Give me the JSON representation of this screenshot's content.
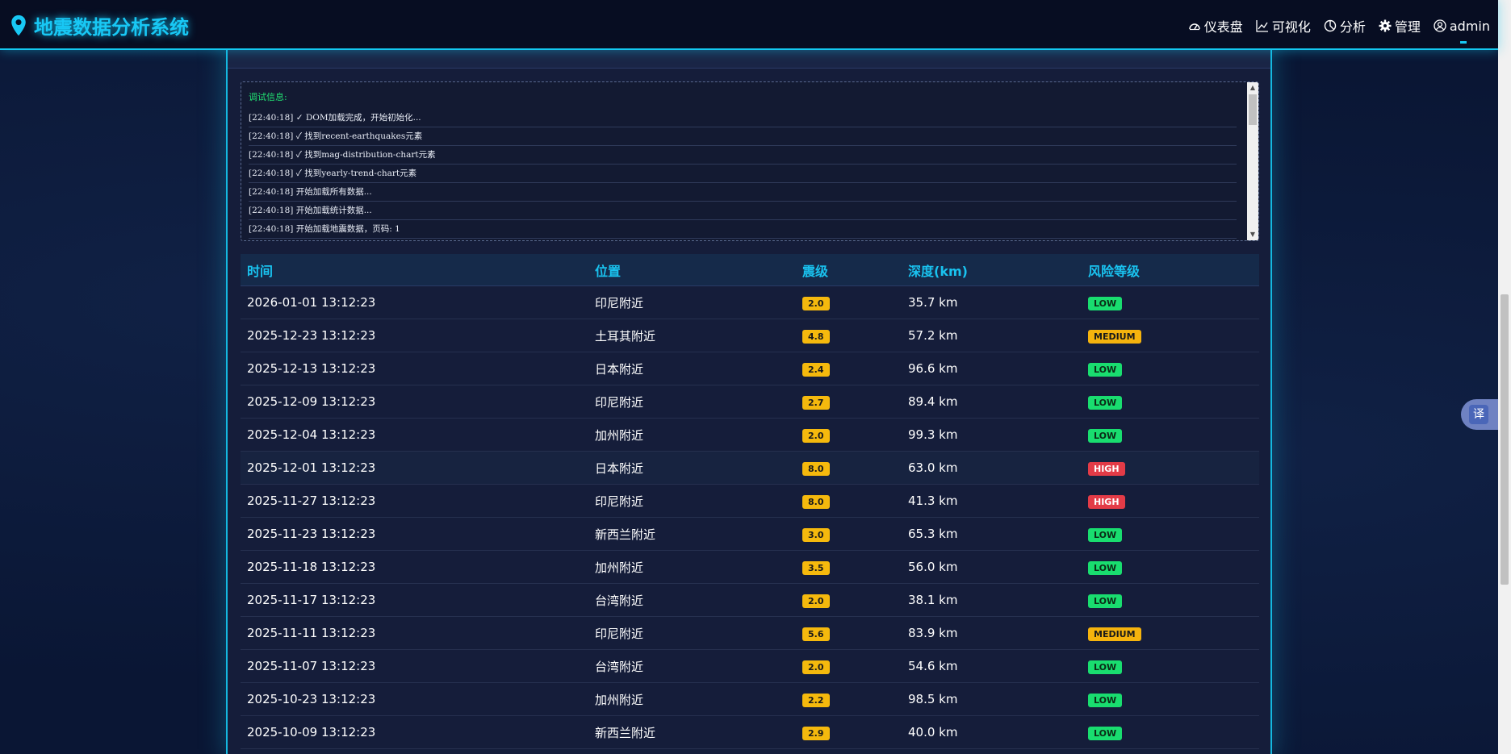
{
  "app": {
    "title": "地震数据分析系统"
  },
  "nav": {
    "items": [
      {
        "label": "仪表盘",
        "icon": "gauge-icon"
      },
      {
        "label": "可视化",
        "icon": "line-chart-icon"
      },
      {
        "label": "分析",
        "icon": "pie-chart-icon"
      },
      {
        "label": "管理",
        "icon": "gear-icon"
      },
      {
        "label": "admin",
        "icon": "user-circle-icon"
      }
    ]
  },
  "debug": {
    "title": "调试信息:",
    "lines": [
      "[22:40:18] ✓ DOM加载完成，开始初始化...",
      "[22:40:18] ✓ 找到recent-earthquakes元素",
      "[22:40:18] ✓ 找到mag-distribution-chart元素",
      "[22:40:18] ✓ 找到yearly-trend-chart元素",
      "[22:40:18] 开始加载所有数据...",
      "[22:40:18] 开始加载统计数据...",
      "[22:40:18] 开始加载地震数据，页码: 1"
    ]
  },
  "table": {
    "headers": {
      "time": "时间",
      "location": "位置",
      "magnitude": "震级",
      "depth": "深度(km)",
      "risk": "风险等级"
    },
    "rows": [
      {
        "time": "2026-01-01 13:12:23",
        "location": "印尼附近",
        "magnitude": "2.0",
        "depth": "35.7 km",
        "risk": "LOW"
      },
      {
        "time": "2025-12-23 13:12:23",
        "location": "土耳其附近",
        "magnitude": "4.8",
        "depth": "57.2 km",
        "risk": "MEDIUM"
      },
      {
        "time": "2025-12-13 13:12:23",
        "location": "日本附近",
        "magnitude": "2.4",
        "depth": "96.6 km",
        "risk": "LOW"
      },
      {
        "time": "2025-12-09 13:12:23",
        "location": "印尼附近",
        "magnitude": "2.7",
        "depth": "89.4 km",
        "risk": "LOW"
      },
      {
        "time": "2025-12-04 13:12:23",
        "location": "加州附近",
        "magnitude": "2.0",
        "depth": "99.3 km",
        "risk": "LOW"
      },
      {
        "time": "2025-12-01 13:12:23",
        "location": "日本附近",
        "magnitude": "8.0",
        "depth": "63.0 km",
        "risk": "HIGH"
      },
      {
        "time": "2025-11-27 13:12:23",
        "location": "印尼附近",
        "magnitude": "8.0",
        "depth": "41.3 km",
        "risk": "HIGH"
      },
      {
        "time": "2025-11-23 13:12:23",
        "location": "新西兰附近",
        "magnitude": "3.0",
        "depth": "65.3 km",
        "risk": "LOW"
      },
      {
        "time": "2025-11-18 13:12:23",
        "location": "加州附近",
        "magnitude": "3.5",
        "depth": "56.0 km",
        "risk": "LOW"
      },
      {
        "time": "2025-11-17 13:12:23",
        "location": "台湾附近",
        "magnitude": "2.0",
        "depth": "38.1 km",
        "risk": "LOW"
      },
      {
        "time": "2025-11-11 13:12:23",
        "location": "印尼附近",
        "magnitude": "5.6",
        "depth": "83.9 km",
        "risk": "MEDIUM"
      },
      {
        "time": "2025-11-07 13:12:23",
        "location": "台湾附近",
        "magnitude": "2.0",
        "depth": "54.6 km",
        "risk": "LOW"
      },
      {
        "time": "2025-10-23 13:12:23",
        "location": "加州附近",
        "magnitude": "2.2",
        "depth": "98.5 km",
        "risk": "LOW"
      },
      {
        "time": "2025-10-09 13:12:23",
        "location": "新西兰附近",
        "magnitude": "2.9",
        "depth": "40.0 km",
        "risk": "LOW"
      }
    ]
  },
  "translate": {
    "label": "译"
  },
  "colors": {
    "accent": "#18c8f5",
    "low": "#19dd6f",
    "medium": "#f5b30d",
    "high": "#e33b47"
  }
}
